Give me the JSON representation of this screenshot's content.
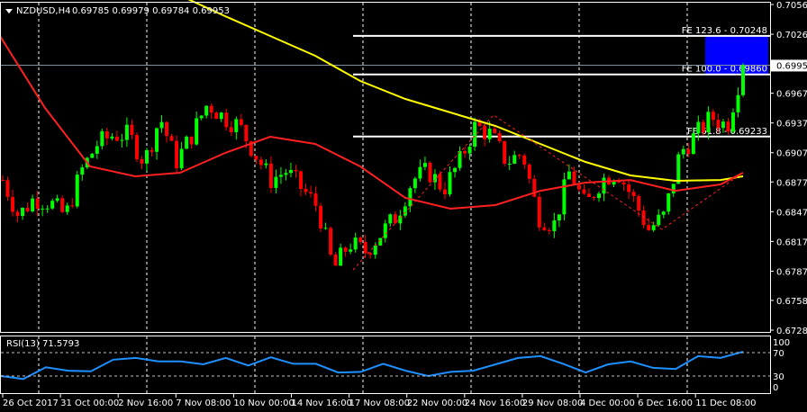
{
  "header": {
    "symbol": "NZDUSD,H4",
    "ohlc": "0.69785 0.69979 0.69784 0.69953"
  },
  "rsi_label": "RSI(13) 71.5793",
  "colors": {
    "bull": "#00ff00",
    "bear": "#ff0000",
    "ma_slow": "#ffff00",
    "ma_fast": "#ff2020",
    "rsi": "#1e90ff",
    "fe_zone": "#0000ff",
    "bg": "#000000"
  },
  "chart_data": {
    "type": "candlestick",
    "ylim": [
      0.6728,
      0.70565
    ],
    "price_ticks": [
      "0.70565",
      "0.70265",
      "0.69670",
      "0.69370",
      "0.69070",
      "0.68775",
      "0.68475",
      "0.68175",
      "0.67875",
      "0.67580",
      "0.67280"
    ],
    "current_price": "0.69953",
    "x_ticks": [
      "26 Oct 2017",
      "31 Oct 00:00",
      "2 Nov 16:00",
      "7 Nov 08:00",
      "10 Nov 00:00",
      "14 Nov 16:00",
      "17 Nov 08:00",
      "22 Nov 00:00",
      "24 Nov 16:00",
      "29 Nov 08:00",
      "4 Dec 00:00",
      "6 Dec 16:00",
      "11 Dec 08:00"
    ],
    "close_path": [
      0.68795,
      0.68432,
      0.68614,
      0.68568,
      0.68432,
      0.68886,
      0.69158,
      0.69249,
      0.69249,
      0.68977,
      0.69431,
      0.68977,
      0.69249,
      0.69567,
      0.69431,
      0.6934,
      0.69068,
      0.68795,
      0.68886,
      0.68705,
      0.68523,
      0.67888,
      0.6816,
      0.6807,
      0.68251,
      0.68432,
      0.68795,
      0.68886,
      0.68705,
      0.68977,
      0.6934,
      0.69249,
      0.68977,
      0.69068,
      0.68432,
      0.68342,
      0.68886,
      0.68523,
      0.68795,
      0.68886,
      0.68614,
      0.68296,
      0.68432,
      0.69068,
      0.69249,
      0.69431,
      0.6934,
      0.69953
    ],
    "ma_slow": [
      null,
      null,
      null,
      null,
      0.70656,
      0.70447,
      0.70247,
      0.70048,
      0.69794,
      0.69612,
      0.69476,
      0.6934,
      0.69158,
      0.68977,
      0.68841,
      0.68786,
      0.68795,
      0.68832
    ],
    "ma_fast": [
      0.70247,
      0.69521,
      0.68932,
      0.68832,
      0.68868,
      0.69068,
      0.69231,
      0.69158,
      0.68932,
      0.68614,
      0.68505,
      0.68541,
      0.68686,
      0.68768,
      0.68795,
      0.68686,
      0.6875,
      0.68868
    ],
    "fibo": [
      {
        "label": "FE 123.6 - 0.70248",
        "price": 0.70248
      },
      {
        "label": "FE 100.0 - 0.69860",
        "price": 0.6986
      },
      {
        "label": "FE 61.8 - 0.69233",
        "price": 0.69233
      }
    ],
    "rsi": {
      "levels": [
        70,
        30
      ],
      "ticks": [
        "100",
        "70",
        "30",
        "0"
      ],
      "values": [
        30,
        25,
        45,
        39,
        38,
        58,
        61,
        55,
        55,
        50,
        61,
        48,
        62,
        51,
        51,
        36,
        37,
        51,
        39,
        30,
        37,
        39,
        50,
        61,
        64,
        51,
        36,
        50,
        55,
        44,
        42,
        64,
        61,
        71.58
      ]
    }
  }
}
